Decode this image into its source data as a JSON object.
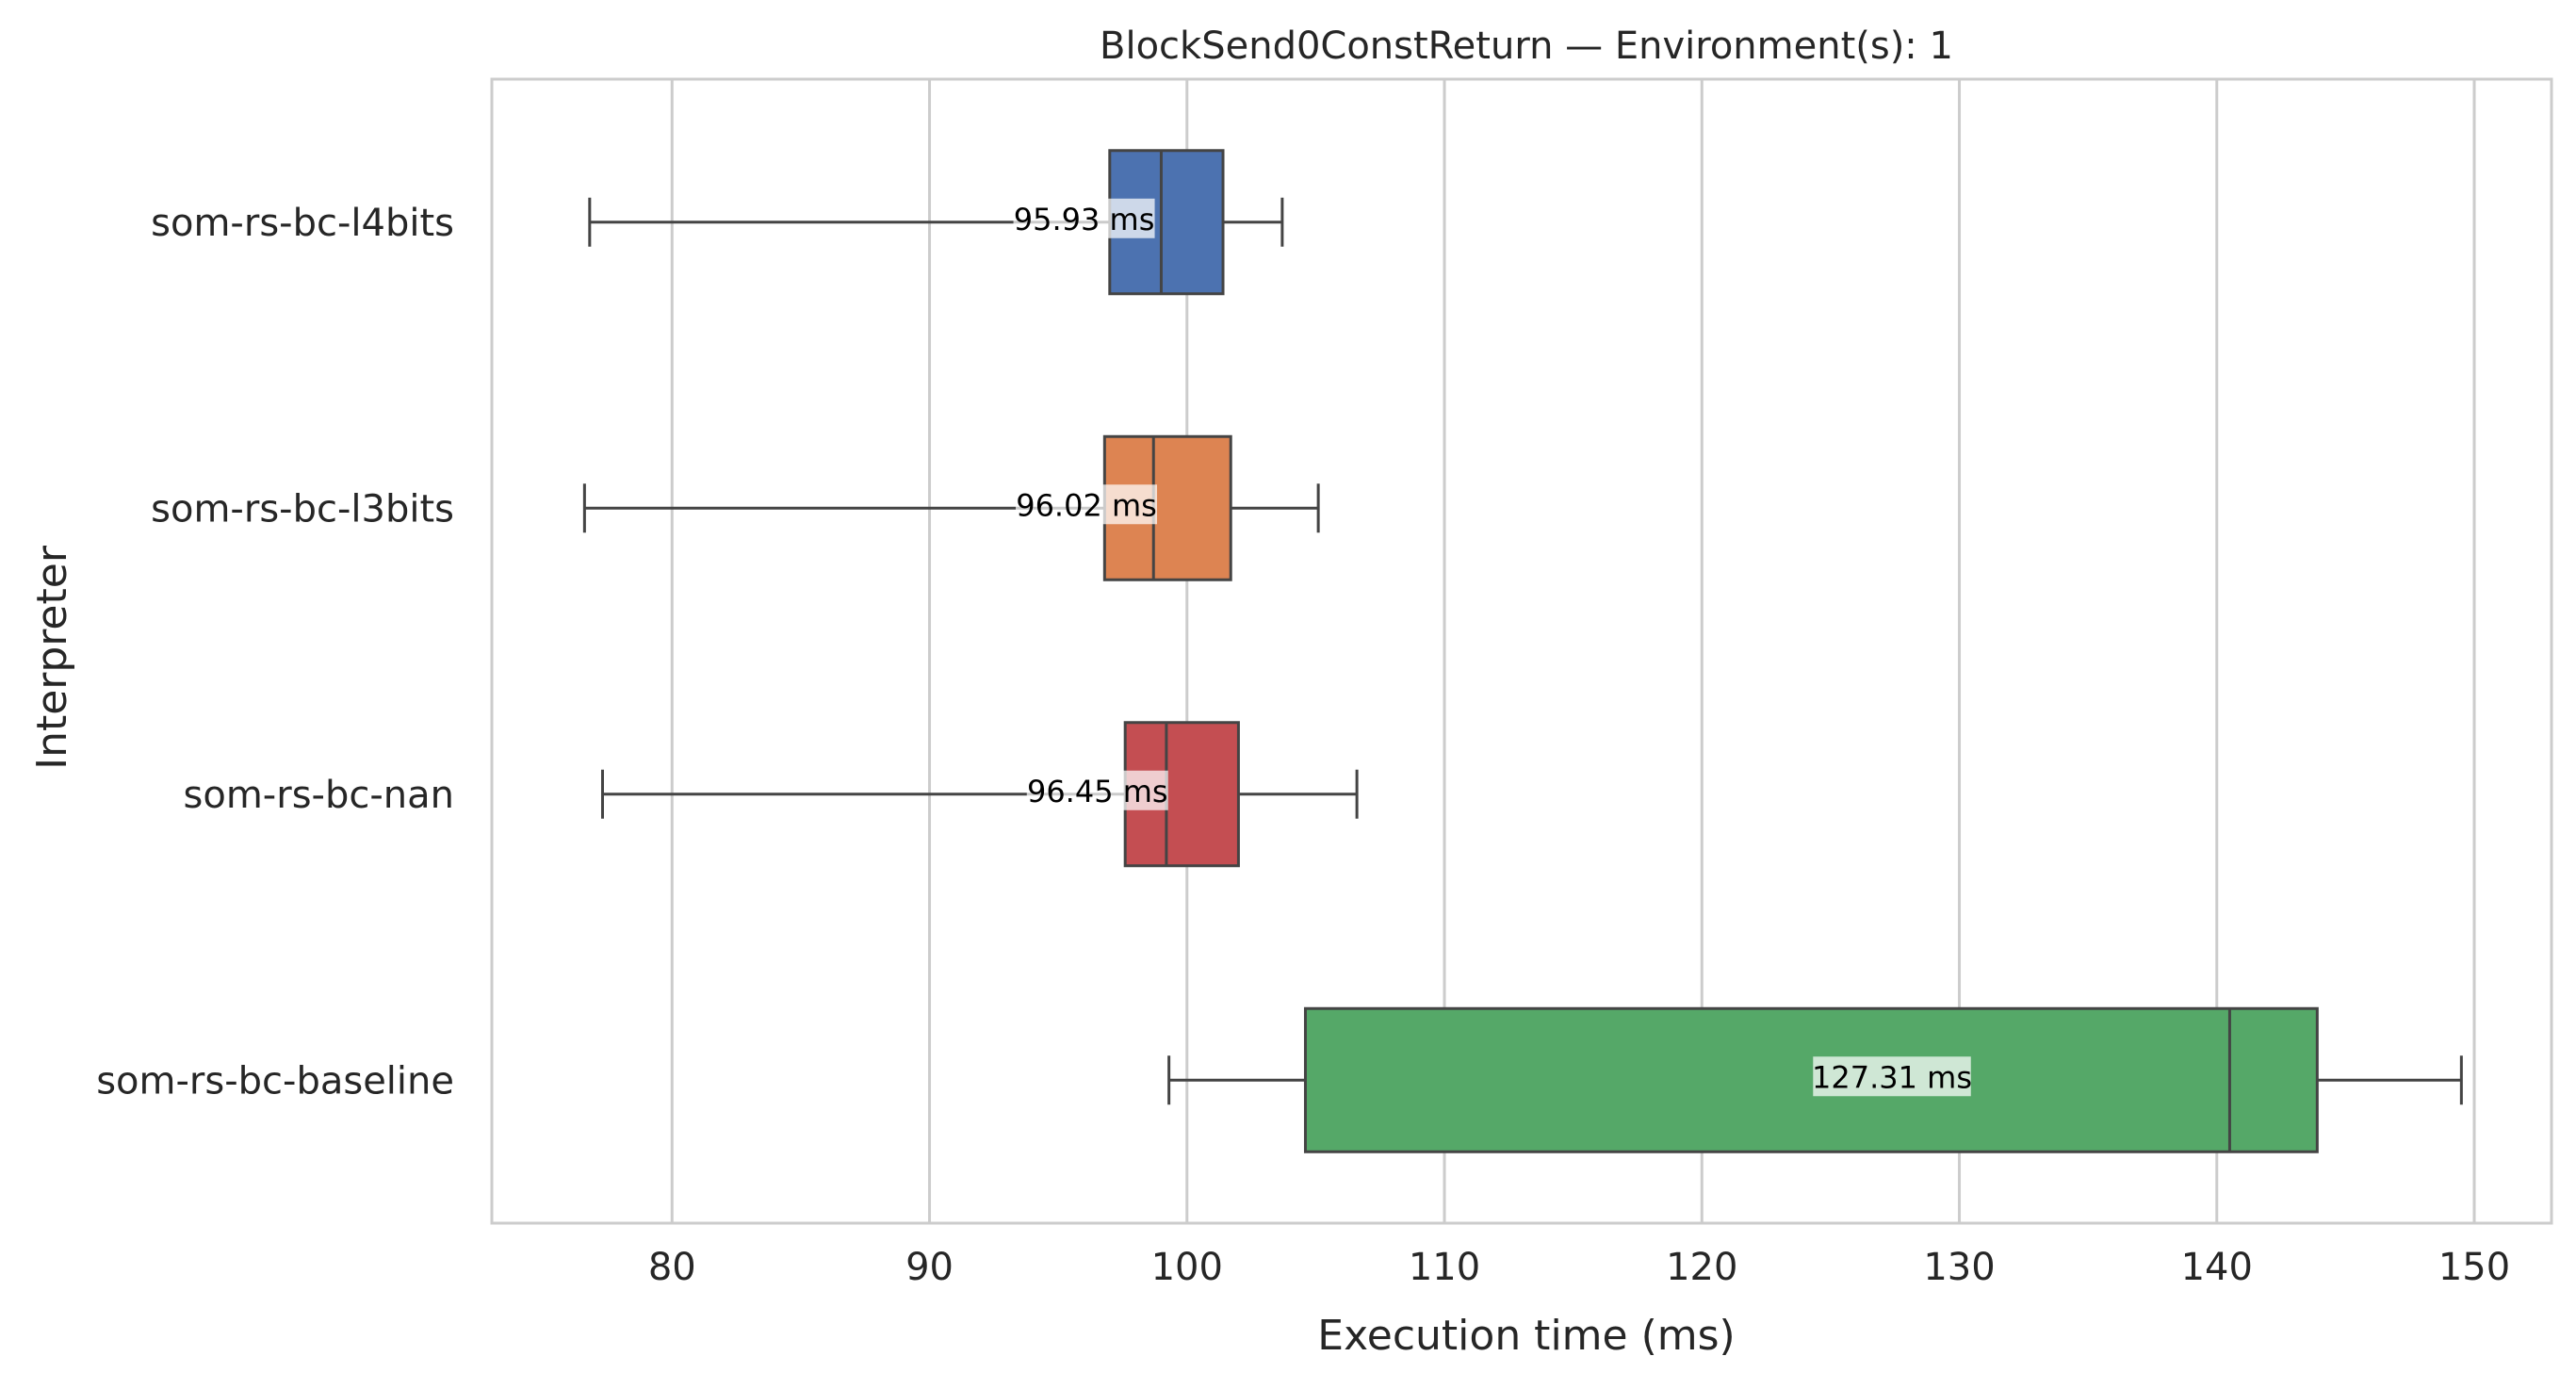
{
  "chart_data": {
    "type": "box",
    "title": "BlockSend0ConstReturn — Environment(s): 1",
    "xlabel": "Execution time (ms)",
    "ylabel": "Interpreter",
    "xlim": [
      73,
      153
    ],
    "xticks": [
      80,
      90,
      100,
      110,
      120,
      130,
      140,
      150
    ],
    "orientation": "horizontal",
    "grid": "vertical",
    "legend": "none",
    "series": [
      {
        "category": "som-rs-bc-l4bits",
        "color": "#4c72b0",
        "whisker_low": 76.8,
        "q1": 97.0,
        "median": 99.0,
        "q3": 101.4,
        "whisker_high": 103.7,
        "mean_label": "95.93 ms",
        "mean": 95.93
      },
      {
        "category": "som-rs-bc-l3bits",
        "color": "#dd8452",
        "whisker_low": 76.6,
        "q1": 96.8,
        "median": 98.7,
        "q3": 101.7,
        "whisker_high": 105.1,
        "mean_label": "96.02 ms",
        "mean": 96.02
      },
      {
        "category": "som-rs-bc-nan",
        "color": "#c44e52",
        "whisker_low": 77.3,
        "q1": 97.6,
        "median": 99.2,
        "q3": 102.0,
        "whisker_high": 106.6,
        "mean_label": "96.45 ms",
        "mean": 96.45
      },
      {
        "category": "som-rs-bc-baseline",
        "color": "#55a868",
        "whisker_low": 99.3,
        "q1": 104.6,
        "median": 140.5,
        "q3": 143.9,
        "whisker_high": 149.5,
        "mean_label": "127.31 ms",
        "mean": 127.31
      }
    ]
  }
}
